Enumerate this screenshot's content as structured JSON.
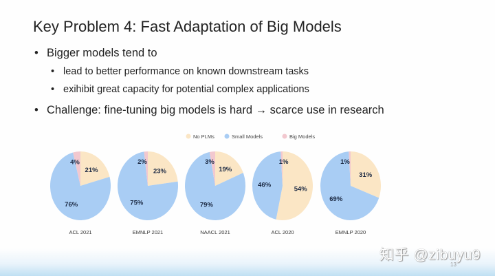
{
  "slide": {
    "title": "Key Problem 4: Fast Adaptation of Big Models",
    "bullets": [
      {
        "text": "Bigger models tend to",
        "level": 1
      },
      {
        "text": "lead to better performance on known downstream tasks",
        "level": 2
      },
      {
        "text": "exihibit great capacity for potential complex applications",
        "level": 2
      },
      {
        "text": "Challenge: fine-tuning big models is hard → scarce use in research",
        "level": 1
      }
    ],
    "page_number": "13",
    "watermark": "知乎 @zibuyu9"
  },
  "chart_data": {
    "type": "pie",
    "legend": [
      "No PLMs",
      "Small Models",
      "Big Models"
    ],
    "legend_placement": "top-center",
    "colors": {
      "No PLMs": "#fbe6c5",
      "Small Models": "#a9cdf4",
      "Big Models": "#f2c8cf"
    },
    "charts": [
      {
        "label": "ACL 2021",
        "values": {
          "No PLMs": 21,
          "Small Models": 76,
          "Big Models": 4
        }
      },
      {
        "label": "EMNLP 2021",
        "values": {
          "No PLMs": 23,
          "Small Models": 75,
          "Big Models": 2
        }
      },
      {
        "label": "NAACL 2021",
        "values": {
          "No PLMs": 19,
          "Small Models": 79,
          "Big Models": 3
        }
      },
      {
        "label": "ACL 2020",
        "values": {
          "No PLMs": 54,
          "Small Models": 46,
          "Big Models": 1
        }
      },
      {
        "label": "EMNLP 2020",
        "values": {
          "No PLMs": 31,
          "Small Models": 69,
          "Big Models": 1
        }
      }
    ]
  }
}
